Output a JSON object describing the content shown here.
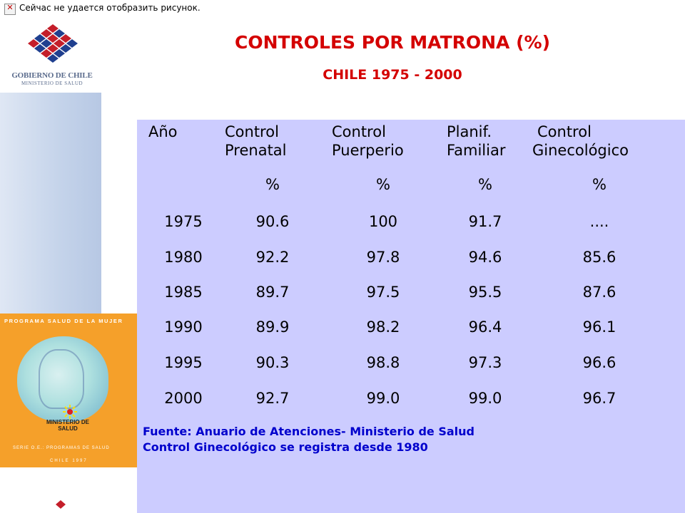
{
  "broken_image_text": "Сейчас не удается отобразить рисунок.",
  "logo": {
    "name": "GOBIERNO DE CHILE",
    "subtitle": "MINISTERIO DE SALUD"
  },
  "book_cover": {
    "title": "PROGRAMA SALUD DE LA MUJER",
    "ministry": "MINISTERIO DE SALUD",
    "series": "SERIE O.E.: PROGRAMAS DE SALUD",
    "year": "CHILE 1997"
  },
  "title": "CONTROLES POR MATRONA (%)",
  "subtitle": "CHILE 1975 - 2000",
  "table": {
    "headers": [
      {
        "line1": "Año",
        "line2": ""
      },
      {
        "line1": "Control",
        "line2": "Prenatal"
      },
      {
        "line1": "Control",
        "line2": "Puerperio"
      },
      {
        "line1": "Planif.",
        "line2": "Familiar"
      },
      {
        "line1": "Control",
        "line2": "Ginecológico"
      }
    ],
    "units": [
      "",
      "%",
      "%",
      "%",
      "%"
    ],
    "rows": [
      [
        "1975",
        "90.6",
        "100",
        "91.7",
        "...."
      ],
      [
        "1980",
        "92.2",
        "97.8",
        "94.6",
        "85.6"
      ],
      [
        "1985",
        "89.7",
        "97.5",
        "95.5",
        "87.6"
      ],
      [
        "1990",
        "89.9",
        "98.2",
        "96.4",
        "96.1"
      ],
      [
        "1995",
        "90.3",
        "98.8",
        "97.3",
        "96.6"
      ],
      [
        "2000",
        "92.7",
        "99.0",
        "99.0",
        "96.7"
      ]
    ]
  },
  "footnotes": [
    "Fuente: Anuario de Atenciones- Ministerio de Salud",
    "Control Ginecológico se registra desde 1980"
  ],
  "colors": {
    "title": "#d40000",
    "panel": "#ccccff",
    "footnote": "#0000cc",
    "cover": "#f5a02a"
  }
}
